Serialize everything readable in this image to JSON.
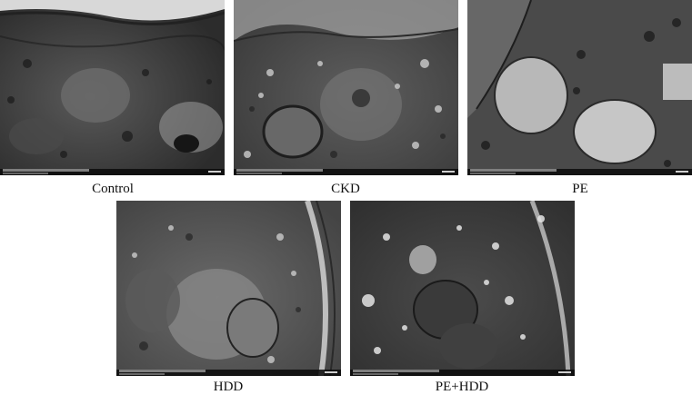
{
  "figure": {
    "panels": [
      {
        "id": "control",
        "label": "Control"
      },
      {
        "id": "ckd",
        "label": "CKD"
      },
      {
        "id": "pe",
        "label": "PE"
      },
      {
        "id": "hdd",
        "label": "HDD"
      },
      {
        "id": "pehdd",
        "label": "PE+HDD"
      }
    ]
  }
}
